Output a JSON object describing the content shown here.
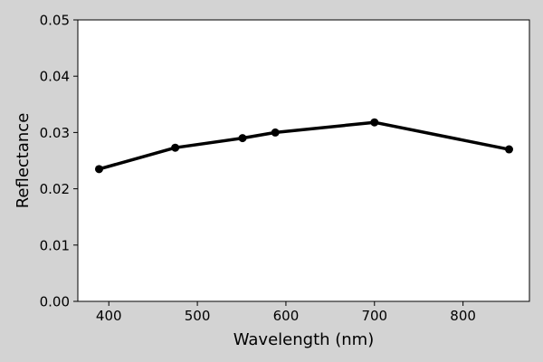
{
  "chart_data": {
    "type": "line",
    "title": "",
    "xlabel": "Wavelength (nm)",
    "ylabel": "Reflectance",
    "xlim": [
      365,
      875
    ],
    "ylim": [
      0.0,
      0.05
    ],
    "xticks": [
      400,
      500,
      600,
      700,
      800
    ],
    "xtick_labels": [
      "400",
      "500",
      "600",
      "700",
      "800"
    ],
    "yticks": [
      0.0,
      0.01,
      0.02,
      0.03,
      0.04,
      0.05
    ],
    "ytick_labels": [
      "0.00",
      "0.01",
      "0.02",
      "0.03",
      "0.04",
      "0.05"
    ],
    "grid": false,
    "series": [
      {
        "x": [
          389,
          475,
          551,
          588,
          700,
          852
        ],
        "y": [
          0.0235,
          0.0273,
          0.029,
          0.03,
          0.0318,
          0.027
        ],
        "color": "#000000",
        "marker": "circle"
      }
    ]
  }
}
